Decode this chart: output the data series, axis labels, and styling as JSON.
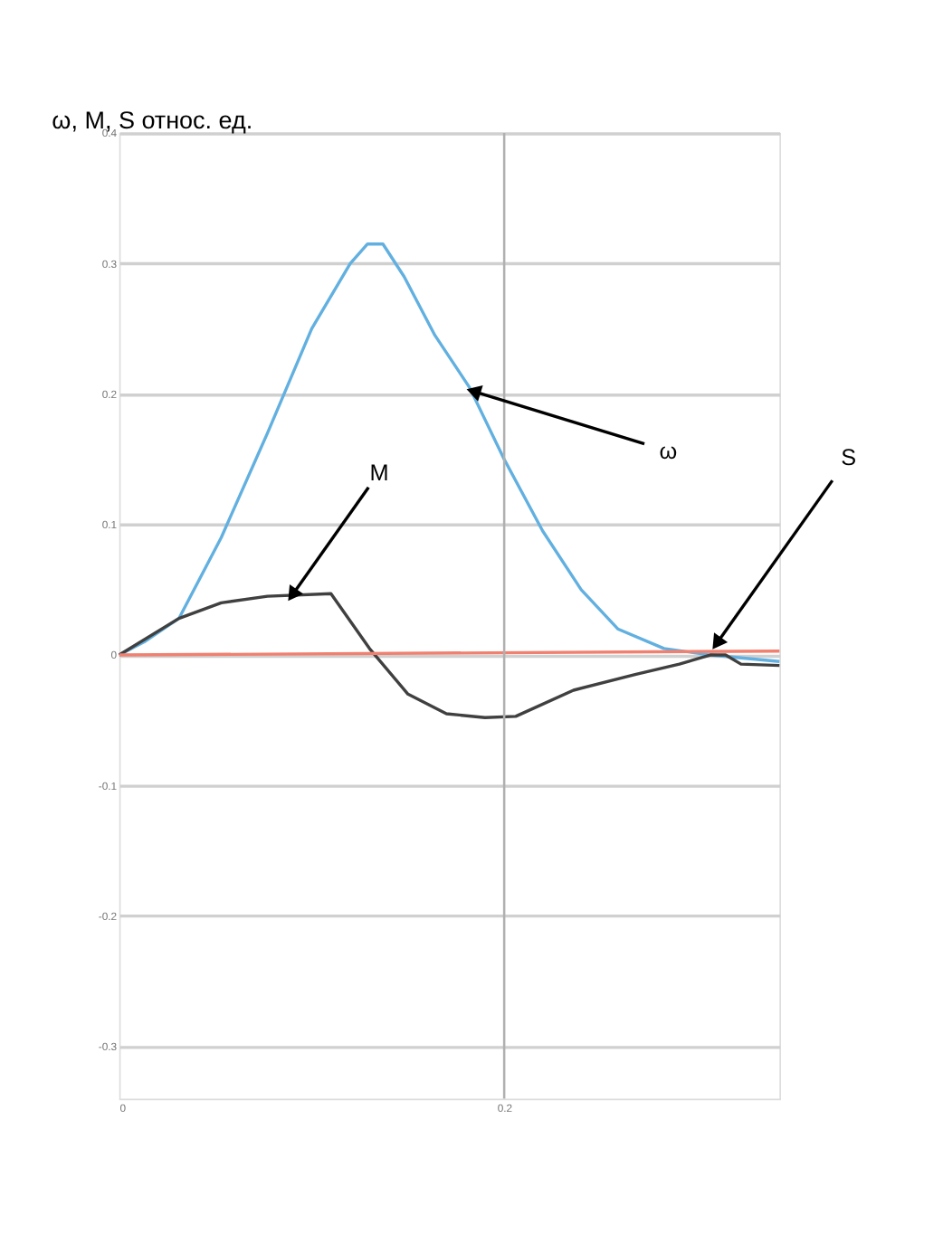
{
  "chart_data": {
    "type": "line",
    "title": "ω, M, S относ. ед.",
    "xlim": [
      0,
      0.343
    ],
    "xticks": [
      0,
      0.2
    ],
    "ylim": [
      -0.34,
      0.4
    ],
    "yticks": [
      -0.3,
      -0.2,
      -0.1,
      0,
      0.1,
      0.2,
      0.3,
      0.4
    ],
    "grid": "y",
    "ref_lines": [
      {
        "axis": "x",
        "value": 0.2,
        "color": "#b0b0b0"
      }
    ],
    "legend": false,
    "marker": "none",
    "line_style": "solid",
    "series": [
      {
        "color": "#62b0e0",
        "x": [
          0,
          0.013,
          0.031,
          0.053,
          0.077,
          0.1,
          0.12,
          0.129,
          0.137,
          0.148,
          0.164,
          0.182,
          0.2,
          0.22,
          0.24,
          0.259,
          0.283,
          0.307,
          0.343
        ],
        "values": [
          0,
          0.01,
          0.028,
          0.09,
          0.17,
          0.25,
          0.3,
          0.315,
          0.315,
          0.29,
          0.245,
          0.205,
          0.15,
          0.095,
          0.05,
          0.02,
          0.005,
          0,
          -0.005
        ]
      },
      {
        "color": "#404040",
        "x": [
          0,
          0.031,
          0.053,
          0.077,
          0.11,
          0.11,
          0.13,
          0.15,
          0.17,
          0.19,
          0.206,
          0.236,
          0.268,
          0.291,
          0.307,
          0.315,
          0.323,
          0.343
        ],
        "values": [
          0,
          0.028,
          0.04,
          0.045,
          0.047,
          0.047,
          0.005,
          -0.03,
          -0.045,
          -0.048,
          -0.047,
          -0.027,
          -0.015,
          -0.007,
          0,
          0,
          -0.007,
          -0.008
        ]
      },
      {
        "color": "#f08070",
        "x": [
          0,
          0.343
        ],
        "values": [
          0,
          0.003
        ]
      }
    ],
    "annotations": [
      {
        "text": "ω",
        "x": 0.182,
        "y": 0.203
      },
      {
        "text": "M",
        "x": 0.089,
        "y": 0.044
      },
      {
        "text": "S",
        "x": 0.309,
        "y": 0.006
      }
    ]
  }
}
